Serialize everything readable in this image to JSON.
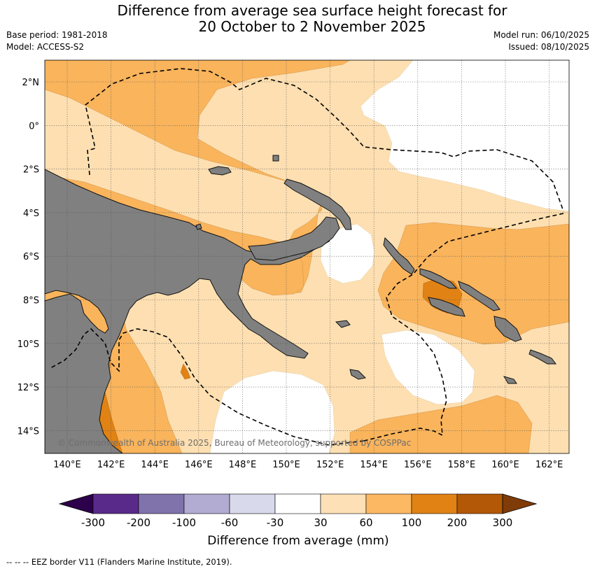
{
  "title": {
    "line1": "Difference from average sea surface height forecast for",
    "line2": "20 October to 2 November 2025"
  },
  "meta_left": {
    "base_period": "Base period: 1981-2018",
    "model": "Model: ACCESS-S2"
  },
  "meta_right": {
    "model_run": "Model run: 06/10/2025",
    "issued": "Issued: 08/10/2025"
  },
  "map": {
    "lon_labels": [
      "140°E",
      "142°E",
      "144°E",
      "146°E",
      "148°E",
      "150°E",
      "152°E",
      "154°E",
      "156°E",
      "158°E",
      "160°E",
      "162°E"
    ],
    "lat_labels": [
      "2°N",
      "0°",
      "2°S",
      "4°S",
      "6°S",
      "8°S",
      "10°S",
      "12°S",
      "14°S"
    ],
    "copyright": "© Commonwealth of Australia 2025, Bureau of Meteorology, supported by COSPPac",
    "colors": {
      "land": "#808080",
      "ocean_bg": "#fddfb1",
      "band_30_60": "#fddfb1",
      "band_60_100": "#f9b45c",
      "band_100_200": "#e08214",
      "neutral": "#ffffff"
    }
  },
  "colorbar": {
    "ticks": [
      "-300",
      "-200",
      "-100",
      "-60",
      "-30",
      "30",
      "60",
      "100",
      "200",
      "300"
    ],
    "colors": [
      "#5a2a8a",
      "#8073ac",
      "#b2abd2",
      "#d8daeb",
      "#ffffff",
      "#fee0b6",
      "#fdb863",
      "#e08214",
      "#b35806"
    ],
    "extend_low_color": "#2d004b",
    "extend_high_color": "#7f3b08",
    "label": "Difference from average (mm)"
  },
  "footer": "--  --  -- EEZ border V11 (Flanders Marine Institute, 2019)."
}
